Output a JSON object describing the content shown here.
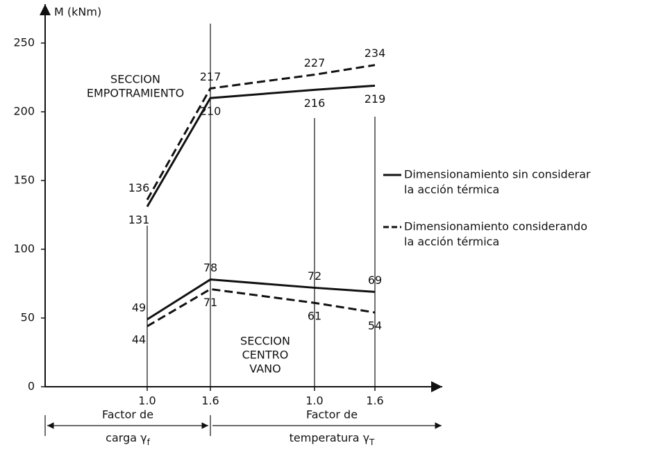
{
  "chart_data": {
    "type": "line",
    "y_label": "M (kNm)",
    "categories": [
      "1.0",
      "1.6",
      "1.0",
      "1.6"
    ],
    "ylim": [
      0,
      250
    ],
    "yticks": [
      0,
      50,
      100,
      150,
      200,
      250
    ],
    "color": "#111111",
    "series": [
      {
        "values": [
          131,
          210,
          216,
          219
        ],
        "dashed": false
      },
      {
        "values": [
          136,
          217,
          227,
          234
        ],
        "dashed": true
      },
      {
        "values": [
          49,
          78,
          72,
          69
        ],
        "dashed": false
      },
      {
        "values": [
          44,
          71,
          61,
          54
        ],
        "dashed": true
      }
    ],
    "legend": [
      {
        "lines": [
          "Dimensionamiento sin considerar",
          "la acción térmica"
        ],
        "dashed": false
      },
      {
        "lines": [
          "Dimensionamiento considerando",
          "la acción térmica"
        ],
        "dashed": true
      }
    ],
    "annotations": [
      {
        "lines": [
          "SECCION",
          "EMPOTRAMIENTO"
        ]
      },
      {
        "lines": [
          "SECCION",
          "CENTRO",
          "VANO"
        ]
      }
    ],
    "x_groups": [
      {
        "lines": [
          "Factor de",
          "carga γ"
        ],
        "sub": "f"
      },
      {
        "lines": [
          "Factor de",
          "temperatura γ"
        ],
        "sub": "T"
      }
    ]
  }
}
